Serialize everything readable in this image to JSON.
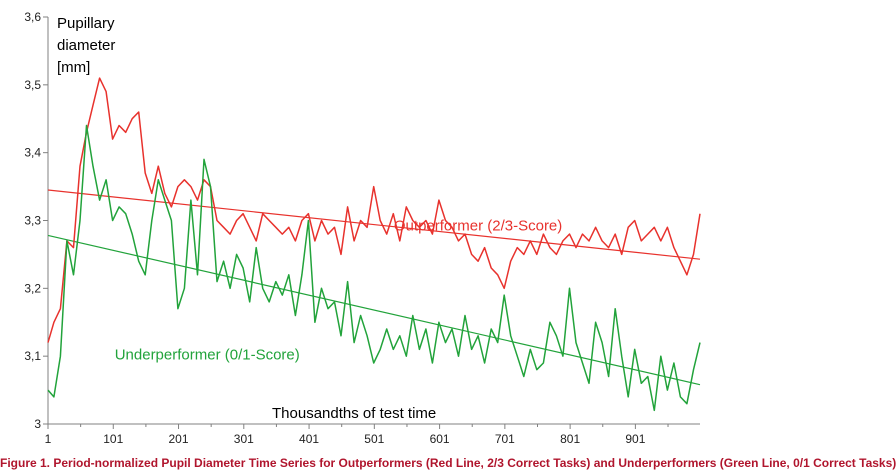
{
  "chart_data": {
    "type": "line",
    "ylabel_lines": [
      "Pupillary",
      "diameter",
      "[mm]"
    ],
    "xlabel": "Thousandths of test time",
    "ylim": [
      3,
      3.6
    ],
    "xlim": [
      1,
      1000
    ],
    "y_ticks": [
      "3",
      "3,1",
      "3,2",
      "3,3",
      "3,4",
      "3,5",
      "3,6"
    ],
    "x_ticks": [
      "1",
      "101",
      "201",
      "301",
      "401",
      "501",
      "601",
      "701",
      "801",
      "901"
    ],
    "grid": false,
    "colors": {
      "outperformer": "#e8322d",
      "underperformer": "#22a33b",
      "axis": "#808080"
    },
    "series": [
      {
        "name": "Outperformer (2/3-Score)",
        "color": "#e8322d",
        "x": [
          1,
          10,
          20,
          30,
          40,
          50,
          60,
          70,
          80,
          90,
          100,
          110,
          120,
          130,
          140,
          150,
          160,
          170,
          180,
          190,
          200,
          210,
          220,
          230,
          240,
          250,
          260,
          270,
          280,
          290,
          300,
          310,
          320,
          330,
          340,
          350,
          360,
          370,
          380,
          390,
          400,
          410,
          420,
          430,
          440,
          450,
          460,
          470,
          480,
          490,
          500,
          510,
          520,
          530,
          540,
          550,
          560,
          570,
          580,
          590,
          600,
          610,
          620,
          630,
          640,
          650,
          660,
          670,
          680,
          690,
          700,
          710,
          720,
          730,
          740,
          750,
          760,
          770,
          780,
          790,
          800,
          810,
          820,
          830,
          840,
          850,
          860,
          870,
          880,
          890,
          900,
          910,
          920,
          930,
          940,
          950,
          960,
          970,
          980,
          990,
          1000
        ],
        "values": [
          3.12,
          3.15,
          3.17,
          3.27,
          3.26,
          3.38,
          3.43,
          3.47,
          3.51,
          3.49,
          3.42,
          3.44,
          3.43,
          3.45,
          3.46,
          3.37,
          3.34,
          3.38,
          3.34,
          3.32,
          3.35,
          3.36,
          3.35,
          3.33,
          3.36,
          3.35,
          3.3,
          3.29,
          3.28,
          3.3,
          3.31,
          3.29,
          3.27,
          3.31,
          3.3,
          3.29,
          3.28,
          3.29,
          3.27,
          3.3,
          3.31,
          3.27,
          3.3,
          3.28,
          3.29,
          3.25,
          3.32,
          3.27,
          3.3,
          3.29,
          3.35,
          3.3,
          3.28,
          3.31,
          3.27,
          3.32,
          3.3,
          3.29,
          3.3,
          3.28,
          3.33,
          3.3,
          3.29,
          3.27,
          3.28,
          3.25,
          3.24,
          3.26,
          3.23,
          3.22,
          3.2,
          3.24,
          3.26,
          3.25,
          3.27,
          3.25,
          3.28,
          3.26,
          3.25,
          3.27,
          3.28,
          3.26,
          3.28,
          3.27,
          3.29,
          3.27,
          3.26,
          3.28,
          3.25,
          3.29,
          3.3,
          3.27,
          3.28,
          3.29,
          3.27,
          3.29,
          3.26,
          3.24,
          3.22,
          3.25,
          3.31
        ]
      },
      {
        "name": "Underperformer (0/1-Score)",
        "color": "#22a33b",
        "x": [
          1,
          10,
          20,
          30,
          40,
          50,
          60,
          70,
          80,
          90,
          100,
          110,
          120,
          130,
          140,
          150,
          160,
          170,
          180,
          190,
          200,
          210,
          220,
          230,
          240,
          250,
          260,
          270,
          280,
          290,
          300,
          310,
          320,
          330,
          340,
          350,
          360,
          370,
          380,
          390,
          400,
          410,
          420,
          430,
          440,
          450,
          460,
          470,
          480,
          490,
          500,
          510,
          520,
          530,
          540,
          550,
          560,
          570,
          580,
          590,
          600,
          610,
          620,
          630,
          640,
          650,
          660,
          670,
          680,
          690,
          700,
          710,
          720,
          730,
          740,
          750,
          760,
          770,
          780,
          790,
          800,
          810,
          820,
          830,
          840,
          850,
          860,
          870,
          880,
          890,
          900,
          910,
          920,
          930,
          940,
          950,
          960,
          970,
          980,
          990,
          1000
        ],
        "values": [
          3.05,
          3.04,
          3.1,
          3.27,
          3.22,
          3.3,
          3.44,
          3.38,
          3.33,
          3.36,
          3.3,
          3.32,
          3.31,
          3.28,
          3.24,
          3.22,
          3.3,
          3.36,
          3.33,
          3.3,
          3.17,
          3.2,
          3.33,
          3.22,
          3.39,
          3.35,
          3.21,
          3.24,
          3.2,
          3.25,
          3.23,
          3.18,
          3.26,
          3.2,
          3.18,
          3.21,
          3.19,
          3.22,
          3.16,
          3.22,
          3.3,
          3.15,
          3.2,
          3.17,
          3.18,
          3.13,
          3.21,
          3.12,
          3.16,
          3.13,
          3.09,
          3.11,
          3.14,
          3.11,
          3.13,
          3.1,
          3.16,
          3.11,
          3.14,
          3.09,
          3.15,
          3.12,
          3.14,
          3.1,
          3.16,
          3.11,
          3.13,
          3.09,
          3.14,
          3.12,
          3.19,
          3.13,
          3.1,
          3.07,
          3.11,
          3.08,
          3.09,
          3.15,
          3.13,
          3.1,
          3.2,
          3.12,
          3.09,
          3.06,
          3.15,
          3.12,
          3.07,
          3.17,
          3.1,
          3.04,
          3.11,
          3.06,
          3.07,
          3.02,
          3.1,
          3.05,
          3.09,
          3.04,
          3.03,
          3.08,
          3.12
        ]
      }
    ],
    "trendlines": [
      {
        "color": "#e8322d",
        "x": [
          1,
          1000
        ],
        "values": [
          3.345,
          3.243
        ]
      },
      {
        "color": "#22a33b",
        "x": [
          1,
          1000
        ],
        "values": [
          3.278,
          3.058
        ]
      }
    ],
    "annotations": [
      {
        "text": "Outperformer (2/3-Score)",
        "x": 660,
        "y": 3.285,
        "color": "#e8322d"
      },
      {
        "text": "Underperformer (0/1-Score)",
        "x": 245,
        "y": 3.095,
        "color": "#22a33b"
      }
    ],
    "caption": "Figure 1. Period-normalized Pupil Diameter Time Series for Outperformers (Red Line, 2/3 Correct Tasks) and Underperformers (Green Line, 0/1 Correct Tasks)"
  }
}
